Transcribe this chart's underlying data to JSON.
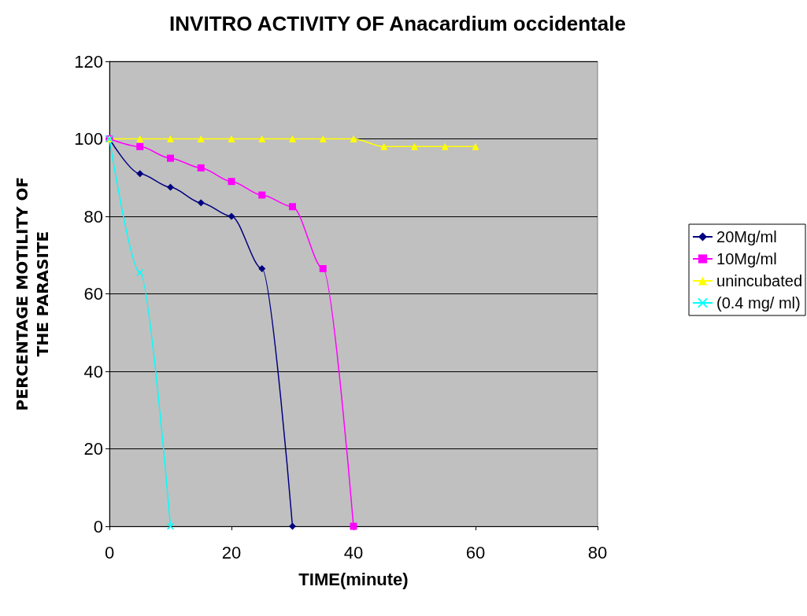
{
  "chart_data": {
    "type": "line",
    "title": "INVITRO ACTIVITY OF Anacardium occidentale",
    "xlabel": "TIME(minute)",
    "ylabel": "PERCENTAGE MOTILITY OF\nTHE PARASITE",
    "xlim": [
      0,
      80
    ],
    "xticks": [
      0,
      20,
      40,
      60,
      80
    ],
    "ylim": [
      0,
      120
    ],
    "yticks": [
      0,
      20,
      40,
      60,
      80,
      100,
      120
    ],
    "grid": "y",
    "legend": "right",
    "series": [
      {
        "name": "20Mg/ml",
        "color": "#000080",
        "marker": "diamond",
        "x": [
          0,
          5,
          10,
          15,
          20,
          25,
          30
        ],
        "values": [
          100,
          91,
          87.5,
          83.5,
          80,
          66.5,
          0
        ]
      },
      {
        "name": "10Mg/ml",
        "color": "#ff00ff",
        "marker": "square",
        "x": [
          0,
          5,
          10,
          15,
          20,
          25,
          30,
          35,
          40
        ],
        "values": [
          100,
          98,
          95,
          92.5,
          89,
          85.5,
          82.5,
          66.5,
          0
        ]
      },
      {
        "name": "unincubated",
        "color": "#ffff00",
        "marker": "triangle",
        "x": [
          0,
          5,
          10,
          15,
          20,
          25,
          30,
          35,
          40,
          45,
          50,
          55,
          60
        ],
        "values": [
          100,
          100,
          100,
          100,
          100,
          100,
          100,
          100,
          100,
          98,
          98,
          98,
          98
        ]
      },
      {
        "name": "(0.4 mg/ ml)",
        "color": "#00ffff",
        "marker": "cross",
        "x": [
          0,
          5,
          10
        ],
        "values": [
          100,
          65.5,
          0
        ]
      }
    ]
  }
}
